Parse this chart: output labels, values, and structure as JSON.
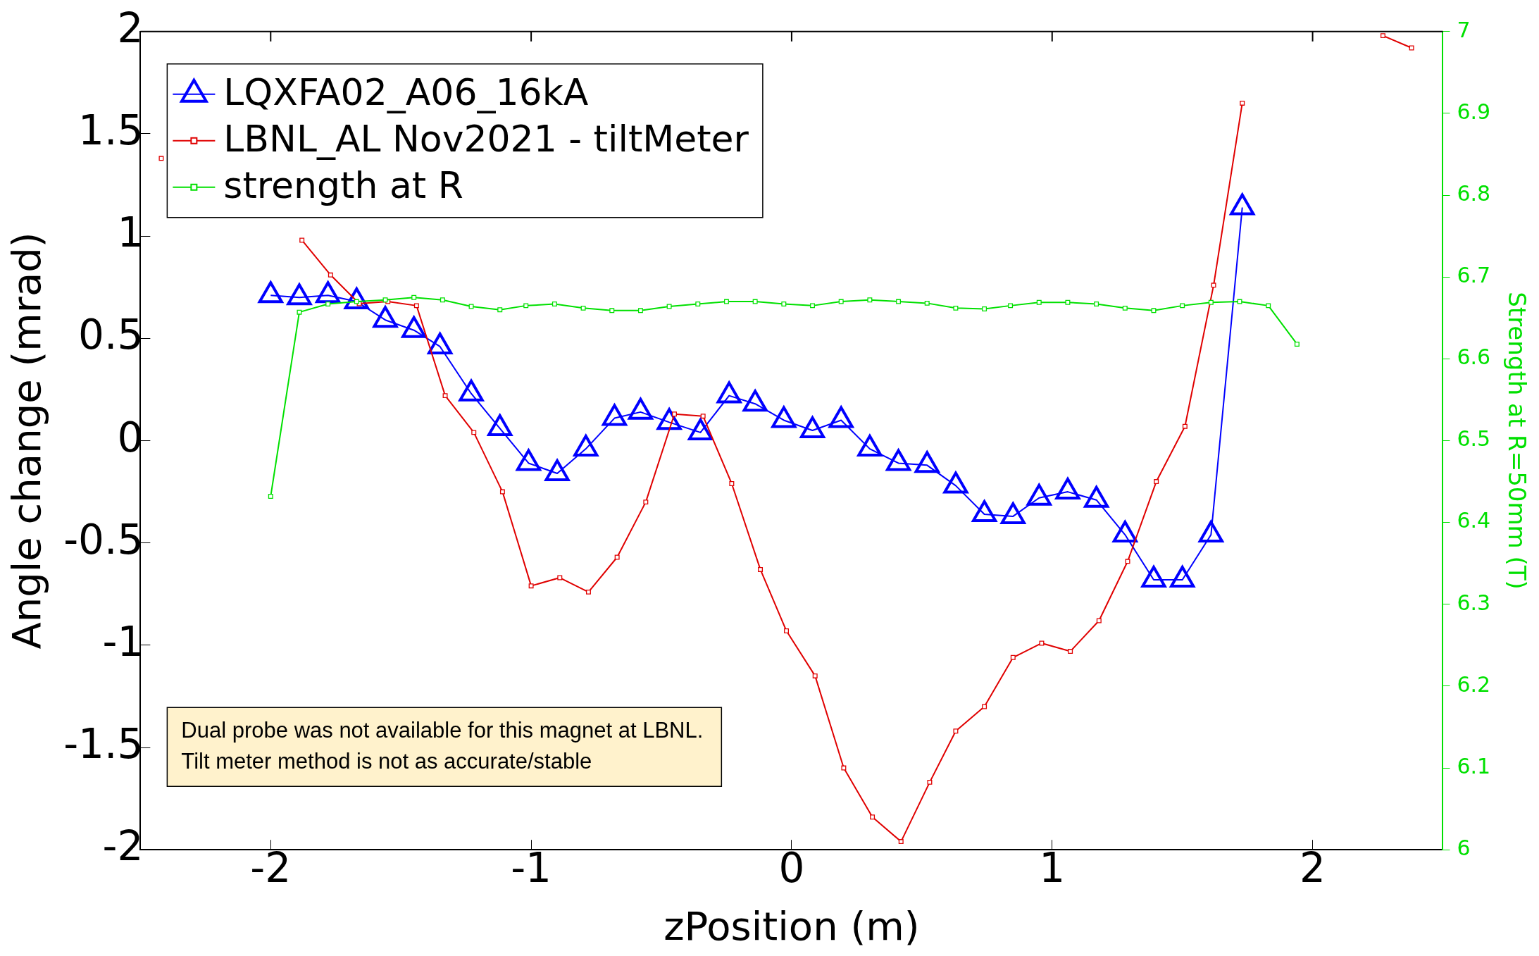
{
  "chart_data": {
    "type": "line",
    "xlabel": "zPosition (m)",
    "ylabel": "Angle change (mrad)",
    "y2label": "Strength at R=50mm (T)",
    "xlim": [
      -2.5,
      2.5
    ],
    "xticks": [
      -2,
      -1,
      0,
      1,
      2
    ],
    "ylim": [
      -2,
      2
    ],
    "yticks": [
      -2,
      -1.5,
      -1,
      -0.5,
      0,
      0.5,
      1,
      1.5,
      2
    ],
    "y2lim": [
      6,
      7
    ],
    "y2ticks": [
      6,
      6.1,
      6.2,
      6.3,
      6.4,
      6.5,
      6.6,
      6.7,
      6.8,
      6.9,
      7
    ],
    "legend": "top left",
    "grid": false,
    "annotations": [
      "Dual probe was not available for this magnet at LBNL.\nTilt meter method is not as accurate/stable"
    ],
    "series": [
      {
        "name": "LQXFA02_A06_16kA",
        "color": "#0000ff",
        "marker": "triangle",
        "x": [
          -2.0,
          -1.89,
          -1.78,
          -1.67,
          -1.56,
          -1.45,
          -1.35,
          -1.23,
          -1.12,
          -1.01,
          -0.9,
          -0.79,
          -0.68,
          -0.58,
          -0.47,
          -0.35,
          -0.24,
          -0.14,
          -0.03,
          0.08,
          0.19,
          0.3,
          0.41,
          0.52,
          0.63,
          0.74,
          0.85,
          0.95,
          1.06,
          1.17,
          1.28,
          1.39,
          1.5,
          1.61,
          1.73
        ],
        "values": [
          0.71,
          0.7,
          0.71,
          0.68,
          0.59,
          0.54,
          0.46,
          0.23,
          0.06,
          -0.11,
          -0.16,
          -0.04,
          0.11,
          0.14,
          0.09,
          0.04,
          0.22,
          0.18,
          0.1,
          0.05,
          0.1,
          -0.04,
          -0.11,
          -0.12,
          -0.22,
          -0.36,
          -0.37,
          -0.28,
          -0.25,
          -0.29,
          -0.46,
          -0.68,
          -0.68,
          -0.46,
          1.14
        ]
      },
      {
        "name": "LBNL_AL Nov2021 - tiltMeter",
        "color": "#e00000",
        "marker": "square",
        "x": [
          -2.42,
          -2.31,
          -2.2,
          -2.09,
          -1.98,
          -1.88,
          -1.77,
          -1.66,
          -1.55,
          -1.44,
          -1.33,
          -1.22,
          -1.11,
          -1.0,
          -0.89,
          -0.78,
          -0.67,
          -0.56,
          -0.45,
          -0.34,
          -0.23,
          -0.12,
          -0.02,
          0.09,
          0.2,
          0.31,
          0.42,
          0.53,
          0.63,
          0.74,
          0.85,
          0.96,
          1.07,
          1.18,
          1.29,
          1.4,
          1.51,
          1.62,
          1.73,
          1.84,
          1.94,
          2.05,
          2.17,
          2.27,
          2.38
        ],
        "values": [
          1.38,
          null,
          null,
          null,
          null,
          0.98,
          0.81,
          0.67,
          0.68,
          0.66,
          0.22,
          0.04,
          -0.25,
          -0.71,
          -0.67,
          -0.74,
          -0.57,
          -0.3,
          0.13,
          0.12,
          -0.21,
          -0.63,
          -0.93,
          -1.15,
          -1.6,
          -1.84,
          -1.96,
          -1.67,
          -1.42,
          -1.3,
          -1.06,
          -0.99,
          -1.03,
          -0.88,
          -0.59,
          -0.2,
          0.07,
          0.76,
          1.65,
          null,
          null,
          null,
          null,
          1.98,
          1.92
        ]
      },
      {
        "name": "strength at R",
        "color": "#00e000",
        "marker": "square",
        "axis": "y2",
        "x": [
          -2.0,
          -1.89,
          -1.78,
          -1.67,
          -1.56,
          -1.45,
          -1.34,
          -1.23,
          -1.12,
          -1.02,
          -0.91,
          -0.8,
          -0.69,
          -0.58,
          -0.47,
          -0.36,
          -0.25,
          -0.14,
          -0.03,
          0.08,
          0.19,
          0.3,
          0.41,
          0.52,
          0.63,
          0.74,
          0.84,
          0.95,
          1.06,
          1.17,
          1.28,
          1.39,
          1.5,
          1.61,
          1.72,
          1.83,
          1.94
        ],
        "values": [
          6.432,
          6.657,
          6.667,
          6.67,
          6.672,
          6.675,
          6.672,
          6.664,
          6.66,
          6.665,
          6.667,
          6.662,
          6.659,
          6.659,
          6.664,
          6.667,
          6.67,
          6.67,
          6.667,
          6.665,
          6.67,
          6.672,
          6.67,
          6.668,
          6.662,
          6.661,
          6.665,
          6.669,
          6.669,
          6.667,
          6.662,
          6.659,
          6.665,
          6.669,
          6.67,
          6.665,
          6.618
        ]
      }
    ]
  }
}
